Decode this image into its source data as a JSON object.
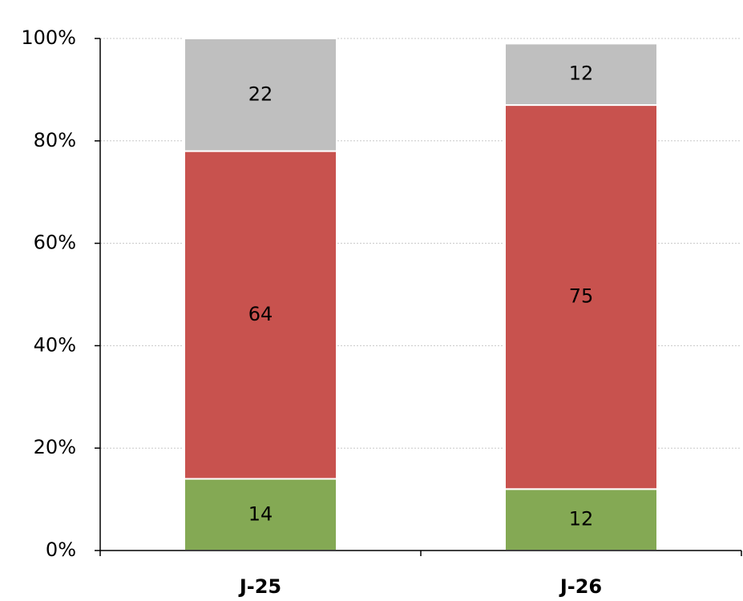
{
  "chart_data": {
    "type": "stacked-bar",
    "categories": [
      "J-25",
      "J-26"
    ],
    "series": [
      {
        "color": "#84a954",
        "values": [
          14,
          12
        ]
      },
      {
        "color": "#c8524e",
        "values": [
          64,
          75
        ]
      },
      {
        "color": "#bfbfbf",
        "values": [
          22,
          12
        ]
      }
    ],
    "ylim": [
      0,
      100
    ],
    "yticks": [
      {
        "value": 0,
        "label": "0%"
      },
      {
        "value": 20,
        "label": "20%"
      },
      {
        "value": 40,
        "label": "40%"
      },
      {
        "value": 60,
        "label": "60%"
      },
      {
        "value": 80,
        "label": "80%"
      },
      {
        "value": 100,
        "label": "100%"
      }
    ],
    "grid": true
  }
}
